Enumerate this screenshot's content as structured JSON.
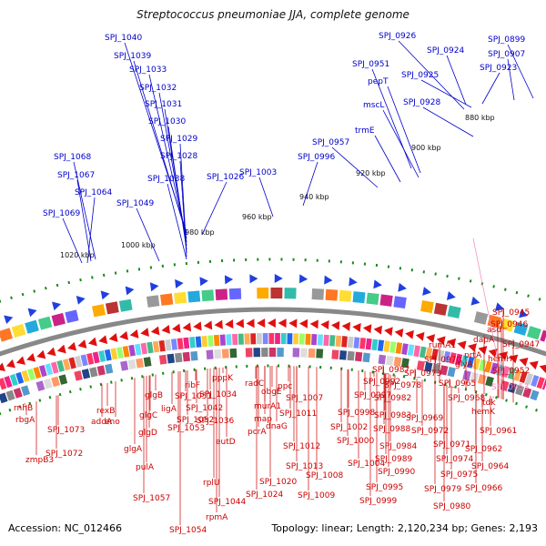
{
  "title": "Streptococcus pneumoniae JJA, complete genome",
  "footer": {
    "accession": "Accession: NC_012466",
    "topology": "Topology: linear; Length: 2,120,234 bp; Genes: 2,193"
  },
  "colors": {
    "upper_label": "#0000cc",
    "lower_label": "#cc0000",
    "highlight_label": "#ee88bb",
    "backbone": "#888888",
    "forward_gene": "#1f3fe0",
    "reverse_gene": "#e01010",
    "tick_mark": "#1a8a1a"
  },
  "ticks": [
    "1020 kbp",
    "1000 kbp",
    "980 kbp",
    "960 kbp",
    "940 kbp",
    "920 kbp",
    "900 kbp",
    "880 kbp"
  ],
  "upper_labels": [
    "SPJ_1040",
    "SPJ_1039",
    "SPJ_1033",
    "SPJ_1032",
    "SPJ_1031",
    "SPJ_1030",
    "SPJ_1029",
    "SPJ_1028",
    "SPJ_1038",
    "SPJ_1026",
    "SPJ_1049",
    "SPJ_1068",
    "SPJ_1067",
    "SPJ_1064",
    "SPJ_1069",
    "SPJ_1003",
    "SPJ_0996",
    "SPJ_0957",
    "trmE",
    "mscL",
    "pepT",
    "SPJ_0951",
    "SPJ_0928",
    "SPJ_0926",
    "SPJ_0924",
    "SPJ_0925",
    "SPJ_0923",
    "SPJ_0907",
    "SPJ_0899"
  ],
  "lower_labels": [
    "SPJ_0945",
    "SPJ_0946",
    "asd",
    "SPJ_0947",
    "dapA",
    "hemH",
    "prtA",
    "SPJ_0952",
    "rumA1",
    "glyA",
    "SPJ_0970",
    "SPJ_0987",
    "SPJ_0973",
    "SPJ_0992",
    "SPJ_0978",
    "SPJ_0965",
    "SPJ_0997",
    "SPJ_0982",
    "SPJ_0968",
    "tdk",
    "SPJ_0983",
    "SPJ_0969",
    "hemK",
    "SPJ_0961",
    "SPJ_0998",
    "SPJ_0988",
    "SPJ_0972",
    "SPJ_0971",
    "SPJ_0962",
    "SPJ_1002",
    "SPJ_0984",
    "SPJ_0974",
    "SPJ_1000",
    "SPJ_0989",
    "SPJ_0975",
    "SPJ_0964",
    "SPJ_1004",
    "SPJ_0990",
    "SPJ_0966",
    "SPJ_0995",
    "SPJ_0979",
    "SPJ_0999",
    "SPJ_0980",
    "ppc",
    "SPJ_1007",
    "obgE",
    "radC",
    "murA1",
    "SPJ_1011",
    "map",
    "dnaG",
    "SPJ_1012",
    "pcrA",
    "SPJ_1013",
    "SPJ_1008",
    "SPJ_1020",
    "SPJ_1009",
    "SPJ_1024",
    "pppK",
    "SPJ_1034",
    "SPJ_1042",
    "ribF",
    "SPJ_1051",
    "SPJ_1036",
    "SPJ_1052",
    "eutD",
    "ligA",
    "SPJ_1053",
    "SPJ_1044",
    "glgB",
    "glgC",
    "glgD",
    "glgA",
    "pulA",
    "SPJ_1057",
    "rplU",
    "rpmA",
    "SPJ_1054",
    "eno",
    "rexB",
    "addA",
    "SPJ_1072",
    "SPJ_1073",
    "rnhB",
    "rbgA",
    "zmpB3"
  ],
  "highlight_label": "SPJ_0953"
}
